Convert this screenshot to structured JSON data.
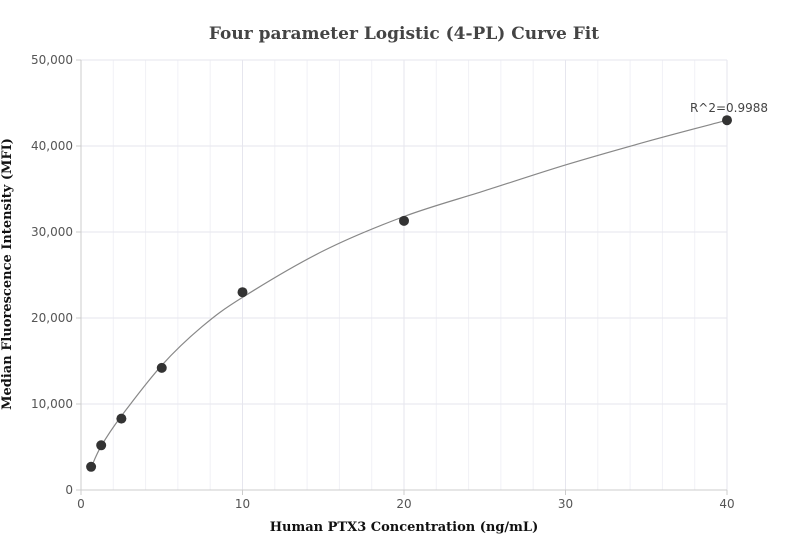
{
  "chart_data": {
    "type": "scatter",
    "title": "Four parameter Logistic (4-PL) Curve Fit",
    "xlabel": "Human PTX3 Concentration (ng/mL)",
    "ylabel": "Median Fluorescence Intensity (MFI)",
    "xlim": [
      0,
      40
    ],
    "ylim": [
      0,
      50000
    ],
    "x_ticks": [
      0,
      10,
      20,
      30,
      40
    ],
    "x_tick_labels": [
      "0",
      "10",
      "20",
      "30",
      "40"
    ],
    "y_ticks": [
      0,
      10000,
      20000,
      30000,
      40000,
      50000
    ],
    "y_tick_labels": [
      "0",
      "10,000",
      "20,000",
      "30,000",
      "40,000",
      "50,000"
    ],
    "grid": true,
    "points": [
      {
        "x": 0.625,
        "y": 2700
      },
      {
        "x": 1.25,
        "y": 5200
      },
      {
        "x": 2.5,
        "y": 8300
      },
      {
        "x": 5,
        "y": 14200
      },
      {
        "x": 10,
        "y": 23000
      },
      {
        "x": 20,
        "y": 31300
      },
      {
        "x": 40,
        "y": 43000
      }
    ],
    "fit_curve": {
      "model": "4PL",
      "x": [
        0.625,
        1.25,
        2.5,
        5,
        7.5,
        10,
        15,
        20,
        25,
        30,
        35,
        40
      ],
      "y": [
        2600,
        5100,
        8600,
        14500,
        19000,
        22400,
        27800,
        31800,
        34800,
        37800,
        40500,
        43000
      ]
    },
    "annotation": {
      "text": "R^2=0.9988",
      "x": 40,
      "y": 43000
    },
    "colors": {
      "point": "#333333",
      "curve": "#888888",
      "grid": "#e6e6ee",
      "axis": "#cccccc"
    }
  }
}
